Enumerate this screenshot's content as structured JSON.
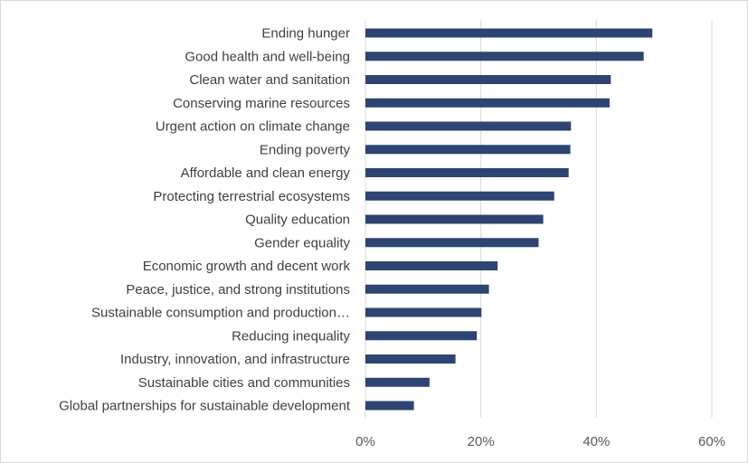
{
  "chart_data": {
    "type": "bar",
    "orientation": "horizontal",
    "categories": [
      "Ending hunger",
      "Good health and well-being",
      "Clean water and sanitation",
      "Conserving marine resources",
      "Urgent action on climate change",
      "Ending poverty",
      "Affordable and clean energy",
      "Protecting terrestrial ecosystems",
      "Quality education",
      "Gender equality",
      "Economic growth and decent work",
      "Peace, justice, and strong institutions",
      "Sustainable consumption and production…",
      "Reducing inequality",
      "Industry, innovation, and infrastructure",
      "Sustainable cities and communities",
      "Global partnerships for sustainable development"
    ],
    "values": [
      49.7,
      48.2,
      42.5,
      42.3,
      35.6,
      35.5,
      35.2,
      32.7,
      30.8,
      30.0,
      22.9,
      21.4,
      20.1,
      19.3,
      15.6,
      11.1,
      8.4
    ],
    "xlim": [
      0,
      60
    ],
    "ticks": [
      "0%",
      "20%",
      "40%",
      "60%"
    ],
    "tick_values": [
      0,
      20,
      40,
      60
    ],
    "title": "",
    "xlabel": "",
    "ylabel": "",
    "grid": true,
    "legend": "none",
    "bar_color": "#2e4472"
  }
}
